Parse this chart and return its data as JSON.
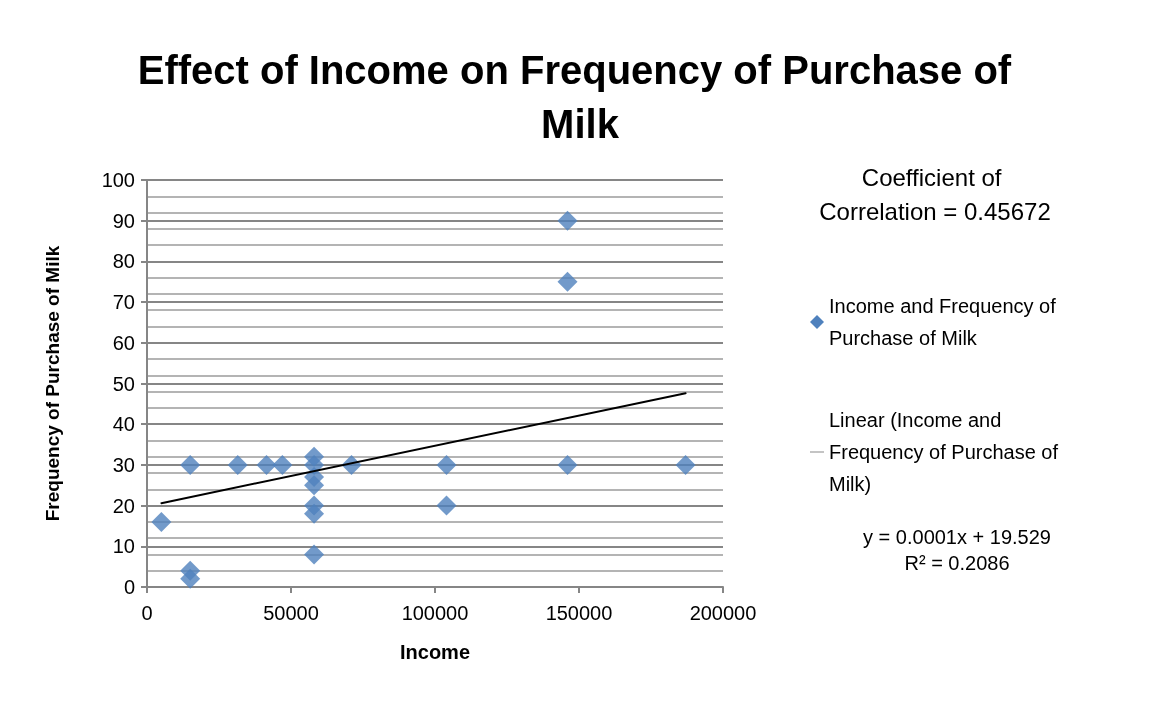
{
  "chart_data": {
    "type": "scatter",
    "title": "Effect of Income on Frequency of Purchase of Milk",
    "xlabel": "Income",
    "ylabel": "Frequency of Purchase of Milk",
    "annotations": [
      "Coefficient of Correlation = 0.45672",
      "y = 0.0001x + 19.529",
      "R² = 0.2086"
    ],
    "series": [
      {
        "name": "Income and Frequency of Purchase of Milk",
        "color": "#4f81bd",
        "marker": "diamond",
        "x": [
          5000,
          15000,
          15000,
          15000,
          31500,
          41500,
          47000,
          58000,
          58000,
          58000,
          58000,
          58000,
          58000,
          58000,
          71000,
          104000,
          104000,
          146000,
          146000,
          146000,
          187000
        ],
        "values": [
          16,
          30,
          4,
          2,
          30,
          30,
          30,
          32,
          30,
          27,
          25,
          20,
          18,
          8,
          30,
          30,
          20,
          90,
          75,
          30,
          30
        ]
      },
      {
        "name": "Linear (Income and Frequency of Purchase of Milk)",
        "type": "line",
        "color": "#000000",
        "marker": "none",
        "line_style": "solid",
        "x": [
          5000,
          187000
        ],
        "values": [
          20.6,
          47.6
        ]
      }
    ],
    "xlim": [
      0,
      200000
    ],
    "xticks": [
      0,
      50000,
      100000,
      150000,
      200000
    ],
    "ylim": [
      0,
      100
    ],
    "yticks": [
      0,
      10,
      20,
      30,
      40,
      50,
      60,
      70,
      80,
      90,
      100
    ],
    "grid": "y",
    "legend": "right"
  }
}
